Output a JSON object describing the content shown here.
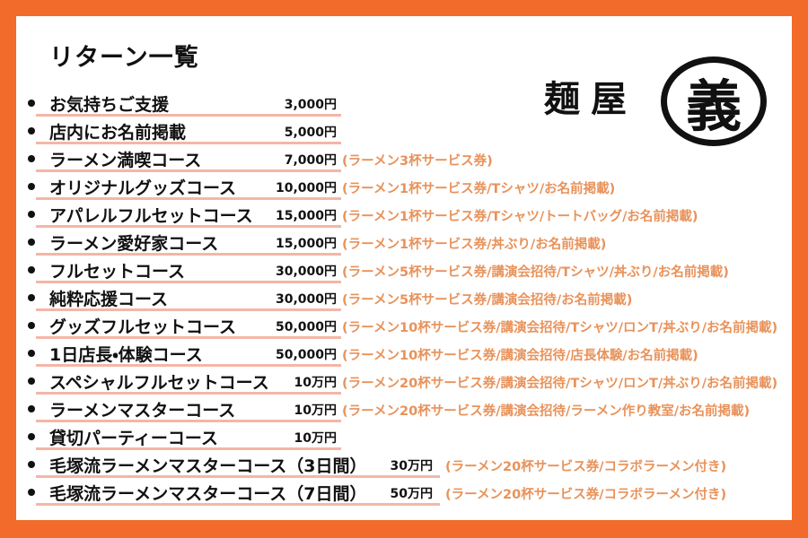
{
  "header": {
    "title": "リターン一覧"
  },
  "logo": {
    "name": "麺屋",
    "mark": "義"
  },
  "items": [
    {
      "name": "お気持ちご支援",
      "price": "3,000円"
    },
    {
      "name": "店内にお名前掲載",
      "price": "5,000円"
    },
    {
      "name": "ラーメン満喫コース",
      "price": "7,000円",
      "perks": "(ラーメン3杯サービス券)"
    },
    {
      "name": "オリジナルグッズコース",
      "price": "10,000円",
      "perks": "(ラーメン1杯サービス券/Tシャツ/お名前掲載)"
    },
    {
      "name": "アパレルフルセットコース",
      "price": "15,000円",
      "perks": "(ラーメン1杯サービス券/Tシャツ/トートバッグ/お名前掲載)"
    },
    {
      "name": "ラーメン愛好家コース",
      "price": "15,000円",
      "perks": "(ラーメン1杯サービス券/丼ぶり/お名前掲載)"
    },
    {
      "name": "フルセットコース",
      "price": "30,000円",
      "perks": "(ラーメン5杯サービス券/講演会招待/Tシャツ/丼ぶり/お名前掲載)"
    },
    {
      "name": "純粋応援コース",
      "price": "30,000円",
      "perks": "(ラーメン5杯サービス券/講演会招待/お名前掲載)"
    },
    {
      "name": "グッズフルセットコース",
      "price": "50,000円",
      "perks": "(ラーメン10杯サービス券/講演会招待/Tシャツ/ロンT/丼ぶり/お名前掲載)"
    },
    {
      "name": "1日店長・体験コース",
      "price": "50,000円",
      "perks": "(ラーメン10杯サービス券/講演会招待/店長体験/お名前掲載)"
    },
    {
      "name": "スペシャルフルセットコース",
      "price": "10万円",
      "perks": "(ラーメン20杯サービス券/講演会招待/Tシャツ/ロンT/丼ぶり/お名前掲載)"
    },
    {
      "name": "ラーメンマスターコース",
      "price": "10万円",
      "perks": "(ラーメン20杯サービス券/講演会招待/ラーメン作り教室/お名前掲載)"
    },
    {
      "name": "貸切パーティーコース",
      "price": "10万円"
    },
    {
      "name": "毛塚流ラーメンマスターコース（3日間）",
      "price": "30万円",
      "perks": "(ラーメン20杯サービス券/コラボラーメン付き)"
    },
    {
      "name": "毛塚流ラーメンマスターコース（7日間）",
      "price": "50万円",
      "perks": "(ラーメン20杯サービス券/コラボラーメン付き)"
    }
  ]
}
